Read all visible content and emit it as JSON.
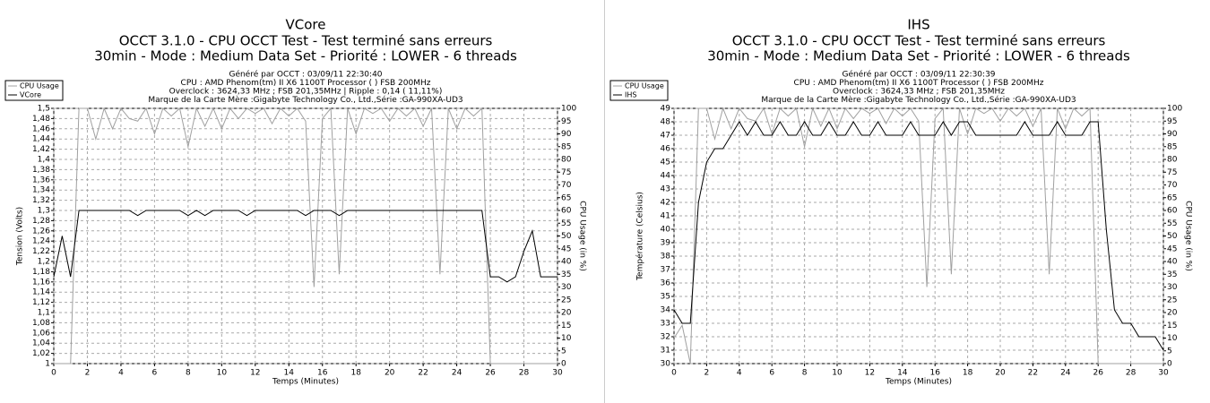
{
  "chart_data": [
    {
      "type": "line",
      "title": "VCore",
      "subtitle": [
        "OCCT 3.1.0 - CPU OCCT Test - Test terminé sans erreurs",
        "30min - Mode : Medium Data Set - Priorité : LOWER - 6 threads"
      ],
      "info": [
        "Généré par OCCT : 03/09/11 22:30:40",
        "CPU : AMD Phenom(tm) II X6 1100T Processor ( ) FSB 200MHz",
        "Overclock : 3624,33 MHz ; FSB 201,35MHz | Ripple : 0,14 ( 11,11%)",
        "Marque de la Carte Mère :Gigabyte Technology Co., Ltd.,Série :GA-990XA-UD3"
      ],
      "xlabel": "Temps (Minutes)",
      "ylabel": "Tension (Volts)",
      "y2label": "CPU Usage (in %)",
      "x": [
        0,
        0.5,
        1,
        1.5,
        2,
        2.5,
        3,
        3.5,
        4,
        4.5,
        5,
        5.5,
        6,
        6.5,
        7,
        7.5,
        8,
        8.5,
        9,
        9.5,
        10,
        10.5,
        11,
        11.5,
        12,
        12.5,
        13,
        13.5,
        14,
        14.5,
        15,
        15.5,
        16,
        16.5,
        17,
        17.5,
        18,
        18.5,
        19,
        19.5,
        20,
        20.5,
        21,
        21.5,
        22,
        22.5,
        23,
        23.5,
        24,
        24.5,
        25,
        25.5,
        26,
        26.5,
        27,
        27.5,
        28,
        28.5,
        29,
        29.5,
        30
      ],
      "series": [
        {
          "name": "CPU Usage",
          "color": "#a0a0a0",
          "axis": "y2",
          "values": [
            0,
            0,
            0,
            100,
            100,
            88,
            100,
            92,
            100,
            96,
            95,
            100,
            90,
            100,
            97,
            100,
            85,
            100,
            93,
            100,
            92,
            100,
            96,
            100,
            98,
            100,
            94,
            100,
            97,
            100,
            95,
            30,
            96,
            100,
            35,
            100,
            90,
            100,
            98,
            100,
            95,
            100,
            97,
            100,
            93,
            100,
            35,
            100,
            92,
            100,
            97,
            100,
            0,
            0,
            0,
            0,
            0,
            0,
            0,
            0,
            0
          ]
        },
        {
          "name": "VCore",
          "color": "#000000",
          "values": [
            1.17,
            1.25,
            1.17,
            1.3,
            1.3,
            1.3,
            1.3,
            1.3,
            1.3,
            1.3,
            1.29,
            1.3,
            1.3,
            1.3,
            1.3,
            1.3,
            1.29,
            1.3,
            1.29,
            1.3,
            1.3,
            1.3,
            1.3,
            1.29,
            1.3,
            1.3,
            1.3,
            1.3,
            1.3,
            1.3,
            1.29,
            1.3,
            1.3,
            1.3,
            1.29,
            1.3,
            1.3,
            1.3,
            1.3,
            1.3,
            1.3,
            1.3,
            1.3,
            1.3,
            1.3,
            1.3,
            1.3,
            1.3,
            1.3,
            1.3,
            1.3,
            1.3,
            1.17,
            1.17,
            1.16,
            1.17,
            1.22,
            1.26,
            1.17,
            1.17,
            1.17
          ]
        }
      ],
      "xlim": [
        0,
        30
      ],
      "xticks": [
        0,
        2,
        4,
        6,
        8,
        10,
        12,
        14,
        16,
        18,
        20,
        22,
        24,
        26,
        28,
        30
      ],
      "ylim": [
        1,
        1.5
      ],
      "yticks": [
        1,
        {
          "value": 1.02,
          "label": "1,02"
        },
        {
          "value": 1.04,
          "label": "1,04"
        },
        {
          "value": 1.06,
          "label": "1,06"
        },
        {
          "value": 1.08,
          "label": "1,08"
        },
        {
          "value": 1.1,
          "label": "1,1"
        },
        {
          "value": 1.12,
          "label": "1,12"
        },
        {
          "value": 1.14,
          "label": "1,14"
        },
        {
          "value": 1.16,
          "label": "1,16"
        },
        {
          "value": 1.18,
          "label": "1,18"
        },
        {
          "value": 1.2,
          "label": "1,2"
        },
        {
          "value": 1.22,
          "label": "1,22"
        },
        {
          "value": 1.24,
          "label": "1,24"
        },
        {
          "value": 1.26,
          "label": "1,26"
        },
        {
          "value": 1.28,
          "label": "1,28"
        },
        {
          "value": 1.3,
          "label": "1,3"
        },
        {
          "value": 1.32,
          "label": "1,32"
        },
        {
          "value": 1.34,
          "label": "1,34"
        },
        {
          "value": 1.36,
          "label": "1,36"
        },
        {
          "value": 1.38,
          "label": "1,38"
        },
        {
          "value": 1.4,
          "label": "1,4"
        },
        {
          "value": 1.42,
          "label": "1,42"
        },
        {
          "value": 1.44,
          "label": "1,44"
        },
        {
          "value": 1.46,
          "label": "1,46"
        },
        {
          "value": 1.48,
          "label": "1,48"
        },
        {
          "value": 1.5,
          "label": "1,5"
        }
      ],
      "y2lim": [
        0,
        100
      ],
      "y2ticks": [
        0,
        5,
        10,
        15,
        20,
        25,
        30,
        35,
        40,
        45,
        50,
        55,
        60,
        65,
        70,
        75,
        80,
        85,
        90,
        95,
        100
      ],
      "grid": true,
      "legend": "upper left"
    },
    {
      "type": "line",
      "title": "IHS",
      "subtitle": [
        "OCCT 3.1.0 - CPU OCCT Test - Test terminé sans erreurs",
        "30min - Mode : Medium Data Set - Priorité : LOWER - 6 threads"
      ],
      "info": [
        "Généré par OCCT : 03/09/11 22:30:39",
        "CPU : AMD Phenom(tm) II X6 1100T Processor ( ) FSB 200MHz",
        "Overclock : 3624,33 MHz ; FSB 201,35MHz",
        "Marque de la Carte Mère :Gigabyte Technology Co., Ltd.,Série :GA-990XA-UD3"
      ],
      "xlabel": "Temps (Minutes)",
      "ylabel": "Température (Celsius)",
      "y2label": "CPU Usage (in %)",
      "x": [
        0,
        0.5,
        1,
        1.5,
        2,
        2.5,
        3,
        3.5,
        4,
        4.5,
        5,
        5.5,
        6,
        6.5,
        7,
        7.5,
        8,
        8.5,
        9,
        9.5,
        10,
        10.5,
        11,
        11.5,
        12,
        12.5,
        13,
        13.5,
        14,
        14.5,
        15,
        15.5,
        16,
        16.5,
        17,
        17.5,
        18,
        18.5,
        19,
        19.5,
        20,
        20.5,
        21,
        21.5,
        22,
        22.5,
        23,
        23.5,
        24,
        24.5,
        25,
        25.5,
        26,
        26.5,
        27,
        27.5,
        28,
        28.5,
        29,
        29.5,
        30
      ],
      "series": [
        {
          "name": "CPU Usage",
          "color": "#a0a0a0",
          "axis": "y2",
          "values": [
            10,
            15,
            0,
            100,
            100,
            88,
            100,
            92,
            100,
            96,
            95,
            100,
            90,
            100,
            97,
            100,
            85,
            100,
            93,
            100,
            92,
            100,
            96,
            100,
            98,
            100,
            94,
            100,
            97,
            100,
            95,
            30,
            96,
            100,
            35,
            100,
            90,
            100,
            98,
            100,
            95,
            100,
            97,
            100,
            93,
            100,
            35,
            100,
            92,
            100,
            97,
            100,
            0,
            0,
            0,
            0,
            0,
            0,
            0,
            0,
            0
          ]
        },
        {
          "name": "IHS",
          "color": "#000000",
          "values": [
            34,
            33,
            33,
            42,
            45,
            46,
            46,
            47,
            48,
            47,
            48,
            47,
            47,
            48,
            47,
            47,
            48,
            47,
            47,
            48,
            47,
            47,
            48,
            47,
            47,
            48,
            47,
            47,
            47,
            48,
            47,
            47,
            47,
            48,
            47,
            48,
            48,
            47,
            47,
            47,
            47,
            47,
            47,
            48,
            47,
            47,
            47,
            48,
            47,
            47,
            47,
            48,
            48,
            40,
            34,
            33,
            33,
            32,
            32,
            32,
            31
          ]
        }
      ],
      "xlim": [
        0,
        30
      ],
      "xticks": [
        0,
        2,
        4,
        6,
        8,
        10,
        12,
        14,
        16,
        18,
        20,
        22,
        24,
        26,
        28,
        30
      ],
      "ylim": [
        30,
        49
      ],
      "yticks": [
        30,
        31,
        32,
        33,
        34,
        35,
        36,
        37,
        38,
        39,
        40,
        41,
        42,
        43,
        44,
        45,
        46,
        47,
        48,
        49
      ],
      "y2lim": [
        0,
        100
      ],
      "y2ticks": [
        0,
        5,
        10,
        15,
        20,
        25,
        30,
        35,
        40,
        45,
        50,
        55,
        60,
        65,
        70,
        75,
        80,
        85,
        90,
        95,
        100
      ],
      "grid": true,
      "legend": "upper left"
    }
  ]
}
